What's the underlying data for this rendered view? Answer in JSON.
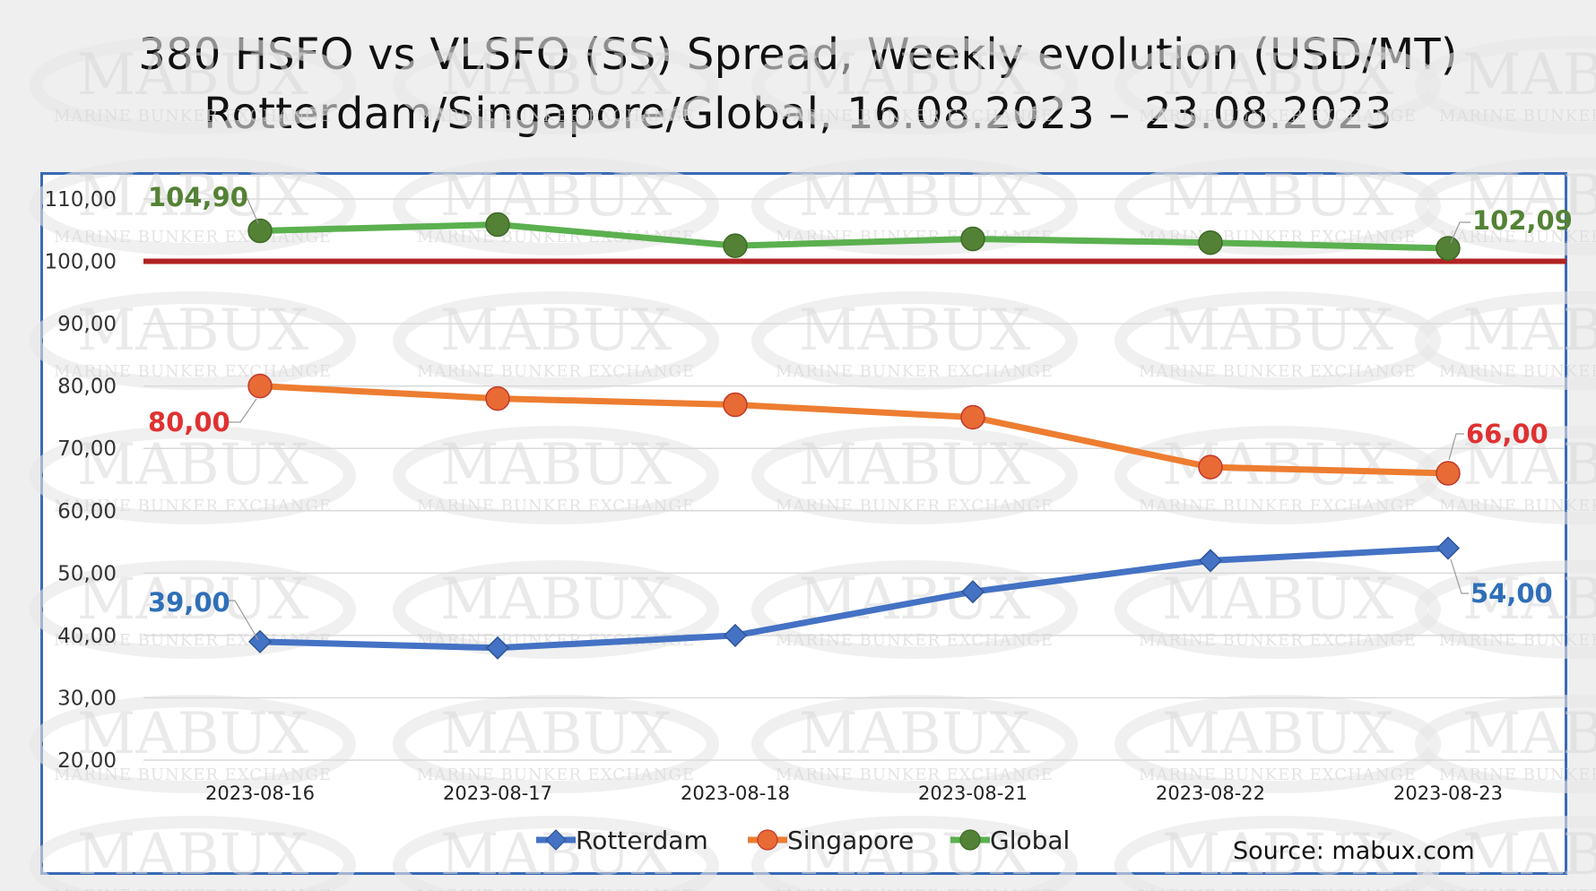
{
  "watermark": {
    "brand": "MABUX",
    "subtitle": "MARINE BUNKER EXCHANGE"
  },
  "source_note": "Source: mabux.com",
  "colors": {
    "rotterdam": "#4472c4",
    "singapore": "#ed7d31",
    "global": "#5bb04f",
    "global_marker": "#538135",
    "singapore_marker": "#e86a34",
    "threshold": "#b22222",
    "label_green": "#548235",
    "label_red": "#e03131",
    "label_blue": "#2f6fb8",
    "frame": "#3a6ab5"
  },
  "chart_data": {
    "type": "line",
    "title": "380 HSFO vs VLSFO (SS) Spread, Weekly evolution (USD/MT)",
    "subtitle": "Rotterdam/Singapore/Global, 16.08.2023 – 23.08.2023",
    "categories": [
      "2023-08-16",
      "2023-08-17",
      "2023-08-18",
      "2023-08-21",
      "2023-08-22",
      "2023-08-23"
    ],
    "y_ticks": [
      "20,00",
      "30,00",
      "40,00",
      "50,00",
      "60,00",
      "70,00",
      "80,00",
      "90,00",
      "100,00",
      "110,00"
    ],
    "ylim": [
      20,
      110
    ],
    "grid": true,
    "legend_position": "bottom",
    "reference_line": 100,
    "series": [
      {
        "name": "Rotterdam",
        "values": [
          39,
          38,
          40,
          47,
          52,
          54
        ],
        "marker": "diamond",
        "first_label": "39,00",
        "last_label": "54,00"
      },
      {
        "name": "Singapore",
        "values": [
          80,
          78,
          77,
          75,
          67,
          66
        ],
        "marker": "circle",
        "first_label": "80,00",
        "last_label": "66,00"
      },
      {
        "name": "Global",
        "values": [
          104.9,
          105.9,
          102.5,
          103.6,
          103.0,
          102.09
        ],
        "marker": "circle",
        "first_label": "104,90",
        "last_label": "102,09"
      }
    ]
  }
}
